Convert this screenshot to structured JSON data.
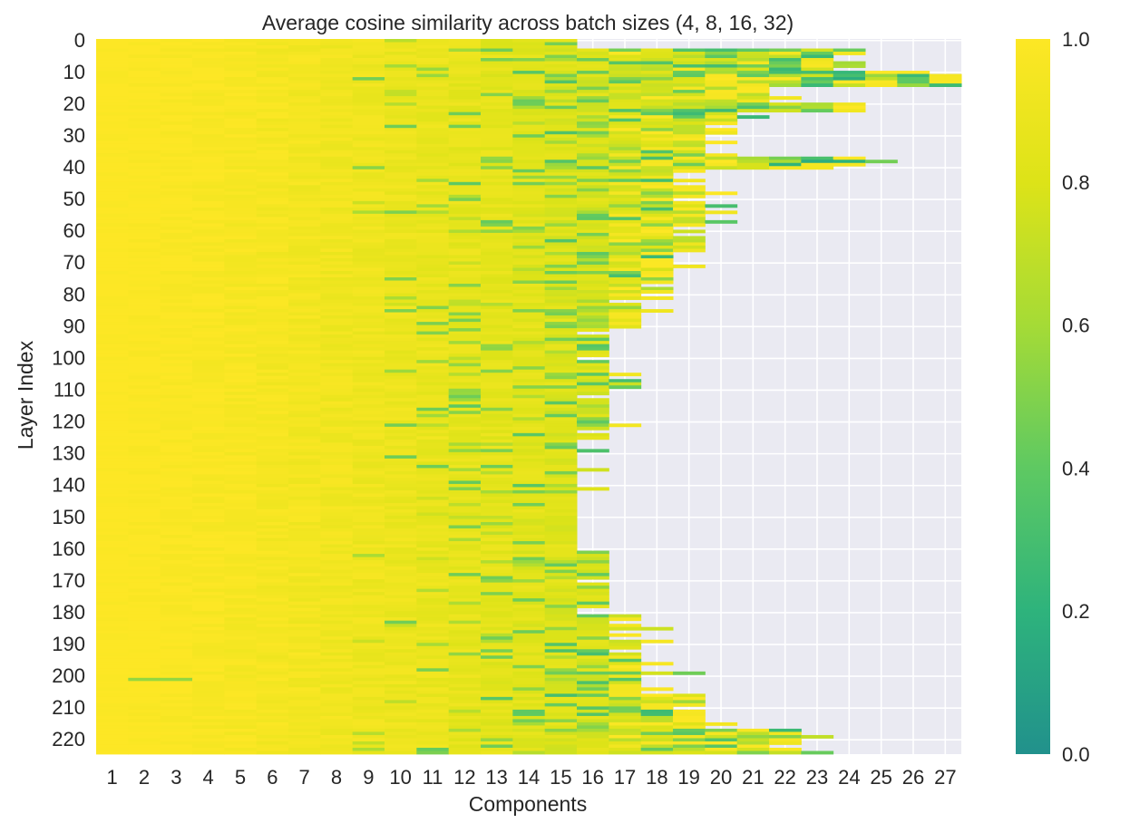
{
  "chart_data": {
    "type": "heatmap",
    "title": "Average cosine similarity across batch sizes (4, 8, 16, 32)",
    "xlabel": "Components",
    "ylabel": "Layer Index",
    "x_categories": [
      "1",
      "2",
      "3",
      "4",
      "5",
      "6",
      "7",
      "8",
      "9",
      "10",
      "11",
      "12",
      "13",
      "14",
      "15",
      "16",
      "17",
      "18",
      "19",
      "20",
      "21",
      "22",
      "23",
      "24",
      "25",
      "26",
      "27"
    ],
    "y_tick_labels": [
      "0",
      "10",
      "20",
      "30",
      "40",
      "50",
      "60",
      "70",
      "80",
      "90",
      "100",
      "110",
      "120",
      "130",
      "140",
      "150",
      "160",
      "170",
      "180",
      "190",
      "200",
      "210",
      "220"
    ],
    "n_layers": 225,
    "value_range": [
      0.0,
      1.0
    ],
    "colorbar_ticks": [
      "0.0",
      "0.2",
      "0.4",
      "0.6",
      "0.8",
      "1.0"
    ],
    "colormap": [
      "#21918c",
      "#2eb37c",
      "#5ec962",
      "#a5db36",
      "#dde318",
      "#fde725"
    ],
    "background_color": "#eaeaf2",
    "grid": true,
    "row_extent_segments": [
      {
        "from": 0,
        "to": 2,
        "n_components": 15
      },
      {
        "from": 3,
        "to": 9,
        "n_components": 24
      },
      {
        "from": 10,
        "to": 14,
        "n_components": 27
      },
      {
        "from": 15,
        "to": 19,
        "n_components": 21
      },
      {
        "from": 20,
        "to": 22,
        "n_components": 24
      },
      {
        "from": 23,
        "to": 29,
        "n_components": 20
      },
      {
        "from": 30,
        "to": 36,
        "n_components": 19
      },
      {
        "from": 37,
        "to": 40,
        "n_components": 24
      },
      {
        "from": 41,
        "to": 49,
        "n_components": 19
      },
      {
        "from": 50,
        "to": 68,
        "n_components": 19
      },
      {
        "from": 69,
        "to": 79,
        "n_components": 18
      },
      {
        "from": 80,
        "to": 90,
        "n_components": 17
      },
      {
        "from": 91,
        "to": 104,
        "n_components": 16
      },
      {
        "from": 105,
        "to": 109,
        "n_components": 17
      },
      {
        "from": 110,
        "to": 125,
        "n_components": 16
      },
      {
        "from": 126,
        "to": 141,
        "n_components": 15
      },
      {
        "from": 142,
        "to": 160,
        "n_components": 15
      },
      {
        "from": 161,
        "to": 180,
        "n_components": 16
      },
      {
        "from": 181,
        "to": 195,
        "n_components": 17
      },
      {
        "from": 196,
        "to": 205,
        "n_components": 18
      },
      {
        "from": 206,
        "to": 216,
        "n_components": 19
      },
      {
        "from": 217,
        "to": 224,
        "n_components": 22
      }
    ],
    "notable_cells": [
      {
        "layer": 5,
        "component": 23,
        "value": 0.25
      },
      {
        "layer": 8,
        "component": 26,
        "value": 0.55
      },
      {
        "layer": 38,
        "component": 24,
        "value": 0.2
      },
      {
        "layer": 38,
        "component": 17,
        "value": 0.45
      },
      {
        "layer": 107,
        "component": 17,
        "value": 0.3
      },
      {
        "layer": 120,
        "component": 16,
        "value": 0.4
      },
      {
        "layer": 190,
        "component": 15,
        "value": 0.35
      },
      {
        "layer": 201,
        "component": 2,
        "value": 0.55
      },
      {
        "layer": 201,
        "component": 3,
        "value": 0.55
      },
      {
        "layer": 206,
        "component": 15,
        "value": 0.3
      }
    ]
  }
}
